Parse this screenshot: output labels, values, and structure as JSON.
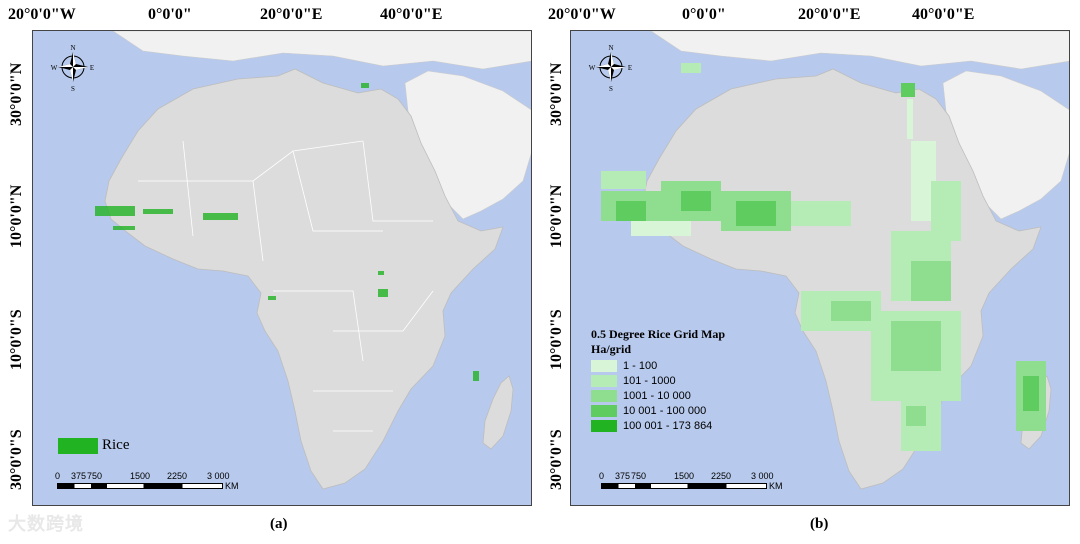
{
  "colors": {
    "ocean": "#b7c9ec",
    "land": "#dcdcdc",
    "other_land": "#f1f1f1",
    "border": "#ffffff",
    "rice": "#22b322",
    "class1": "#d8f5d8",
    "class2": "#b5ecb5",
    "class3": "#8fdd8f",
    "class4": "#5fcc5f",
    "class5": "#22b322"
  },
  "graticule": {
    "top_labels": [
      "20°0'0\"W",
      "0°0'0\"",
      "20°0'0\"E",
      "40°0'0\"E"
    ],
    "left_labels": [
      "30°0'0\"N",
      "10°0'0\"N",
      "10°0'0\"S",
      "30°0'0\"S"
    ]
  },
  "compass": {
    "icon": "north-arrow-compass",
    "n": "N",
    "s": "S",
    "e": "E",
    "w": "W"
  },
  "panel_a": {
    "caption": "(a)",
    "legend_label": "Rice"
  },
  "panel_b": {
    "caption": "(b)",
    "legend_title": "0.5 Degree Rice Grid Map",
    "legend_unit": "Ha/grid",
    "classes": [
      "1 - 100",
      "101 - 1000",
      "1001 - 10 000",
      "10 001 - 100 000",
      "100 001 - 173 864"
    ]
  },
  "scale": {
    "ticks": [
      "0",
      "375",
      "750",
      "1500",
      "2250",
      "3 000"
    ],
    "unit": "KM"
  },
  "watermark": "大数跨境"
}
